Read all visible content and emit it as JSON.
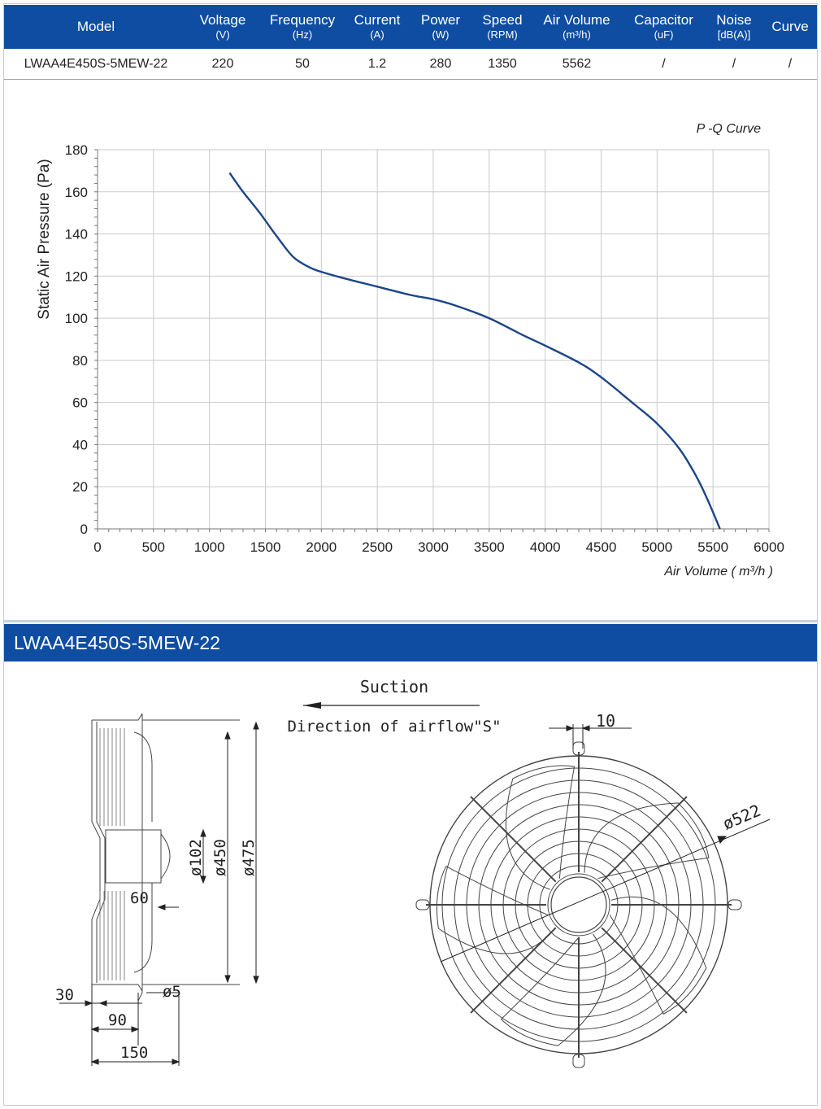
{
  "table": {
    "headers": [
      {
        "name": "Model",
        "unit": ""
      },
      {
        "name": "Voltage",
        "unit": "(V)"
      },
      {
        "name": "Frequency",
        "unit": "(Hz)"
      },
      {
        "name": "Current",
        "unit": "(A)"
      },
      {
        "name": "Power",
        "unit": "(W)"
      },
      {
        "name": "Speed",
        "unit": "(RPM)"
      },
      {
        "name": "Air Volume",
        "unit": "(m³/h)"
      },
      {
        "name": "Capacitor",
        "unit": "(uF)"
      },
      {
        "name": "Noise",
        "unit": "[dB(A)]"
      },
      {
        "name": "Curve",
        "unit": ""
      }
    ],
    "row": [
      "LWAA4E450S-5MEW-22",
      "220",
      "50",
      "1.2",
      "280",
      "1350",
      "5562",
      "/",
      "/",
      "/"
    ]
  },
  "chart_data": {
    "type": "line",
    "title": "P -Q Curve",
    "xlabel": "Air Volume ( m³/h )",
    "ylabel": "Static Air Pressure  (Pa)",
    "xlim": [
      0,
      6000
    ],
    "ylim": [
      0,
      180
    ],
    "xticks": [
      "0",
      "500",
      "1000",
      "1500",
      "2000",
      "2500",
      "3000",
      "3500",
      "4000",
      "4500",
      "5000",
      "5500",
      "6000"
    ],
    "yticks": [
      "0",
      "20",
      "40",
      "60",
      "80",
      "100",
      "120",
      "140",
      "160",
      "180"
    ],
    "grid": true,
    "line_color": "#1c4587",
    "series": [
      {
        "x": [
          1180,
          1300,
          1450,
          1600,
          1750,
          1900,
          2000,
          2200,
          2500,
          2800,
          3000,
          3200,
          3500,
          3800,
          4000,
          4300,
          4500,
          4800,
          5000,
          5200,
          5350,
          5450,
          5562
        ],
        "y": [
          169,
          160,
          150,
          139,
          129,
          124,
          122,
          119,
          115,
          111,
          109,
          106,
          100,
          92,
          87,
          79,
          72,
          59,
          50,
          38,
          25,
          14,
          0
        ]
      }
    ]
  },
  "drawing": {
    "model_title": "LWAA4E450S-5MEW-22",
    "airflow_label": "Suction",
    "airflow_direction": "Direction of airflow\"S\"",
    "dims": {
      "d102": "ø102",
      "d450": "ø450",
      "d475": "ø475",
      "d522": "ø522",
      "d5": "ø5",
      "w10": "10",
      "w60": "60",
      "w30": "30",
      "w90": "90",
      "w150": "150"
    }
  }
}
